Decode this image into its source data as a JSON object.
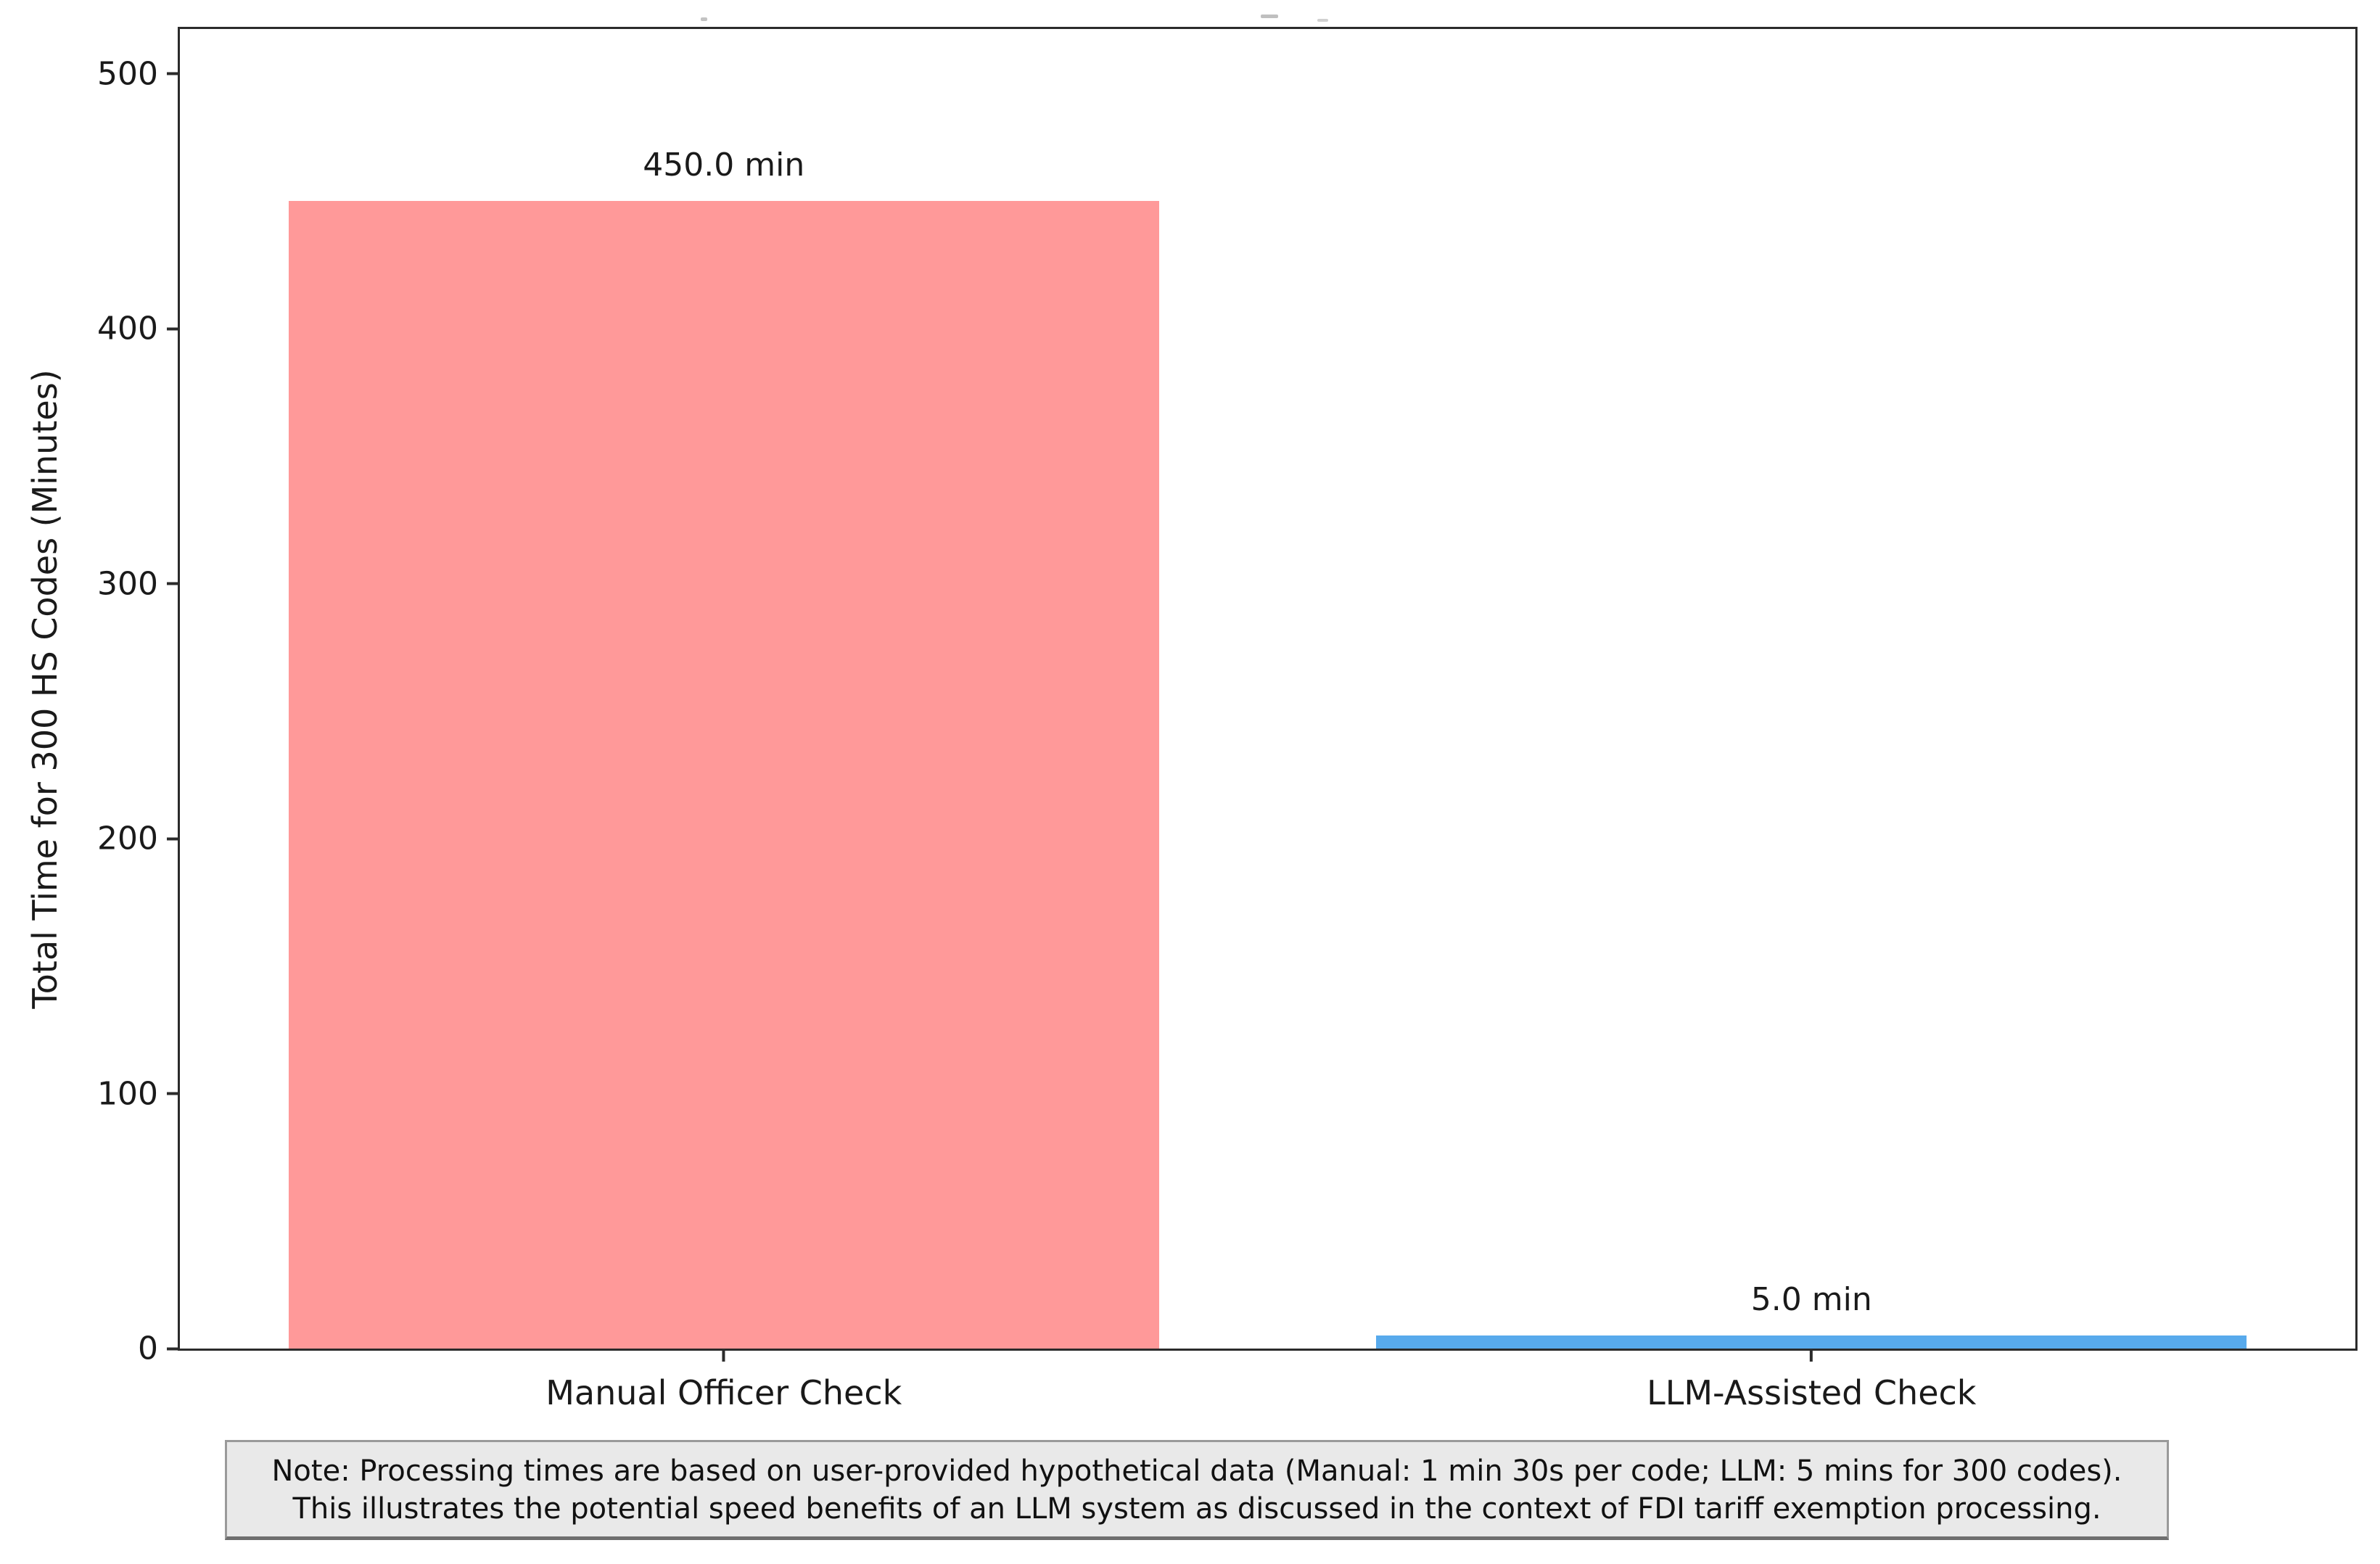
{
  "chart_data": {
    "type": "bar",
    "categories": [
      "Manual Officer Check",
      "LLM-Assisted Check"
    ],
    "values": [
      450.0,
      5.0
    ],
    "value_labels": [
      "450.0 min",
      "5.0 min"
    ],
    "bar_colors": [
      "#ff9999",
      "#58aaec"
    ],
    "bar_width_fraction": 0.8,
    "title": "",
    "xlabel": "",
    "ylabel": "Total Time for 300 HS Codes (Minutes)",
    "ylim": [
      0,
      517.5
    ],
    "yticks": [
      0,
      100,
      200,
      300,
      400,
      500
    ],
    "ytick_labels": [
      "0",
      "100",
      "200",
      "300",
      "400",
      "500"
    ],
    "grid": false,
    "legend": "none"
  },
  "note": {
    "line1": "Note: Processing times are based on user-provided hypothetical data (Manual: 1 min 30s per code; LLM: 5 mins for 300 codes).",
    "line2": "This illustrates the potential speed benefits of an LLM system as discussed in the context of FDI tariff exemption processing.",
    "background": "#e9e9e9",
    "border_color": "#9a9a9a"
  },
  "colors": {
    "axis_spine": "#2b2b2b",
    "manual_bar": "#ff9999",
    "llm_bar": "#58aaec",
    "figure_background": "#ffffff"
  }
}
